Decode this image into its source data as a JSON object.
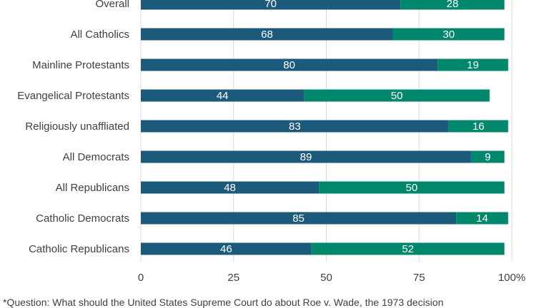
{
  "chart_data": {
    "type": "bar",
    "orientation": "horizontal",
    "stacked": true,
    "categories": [
      "Overall",
      "All Catholics",
      "Mainline Protestants",
      "Evangelical Protestants",
      "Religiously unaffliated",
      "All Democrats",
      "All Republicans",
      "Catholic Democrats",
      "Catholic Republicans"
    ],
    "series": [
      {
        "values": [
          70,
          68,
          80,
          44,
          83,
          89,
          48,
          85,
          46
        ],
        "color": "#1b5a7a"
      },
      {
        "values": [
          28,
          30,
          19,
          50,
          16,
          9,
          50,
          14,
          52
        ],
        "color": "#00876c"
      }
    ],
    "x_ticks": [
      "0",
      "25",
      "50",
      "75",
      "100%"
    ],
    "xlim": [
      0,
      100
    ],
    "grid": true,
    "footnote": "*Question: What should the United States Supreme Court do about Roe v. Wade, the 1973 decision"
  }
}
